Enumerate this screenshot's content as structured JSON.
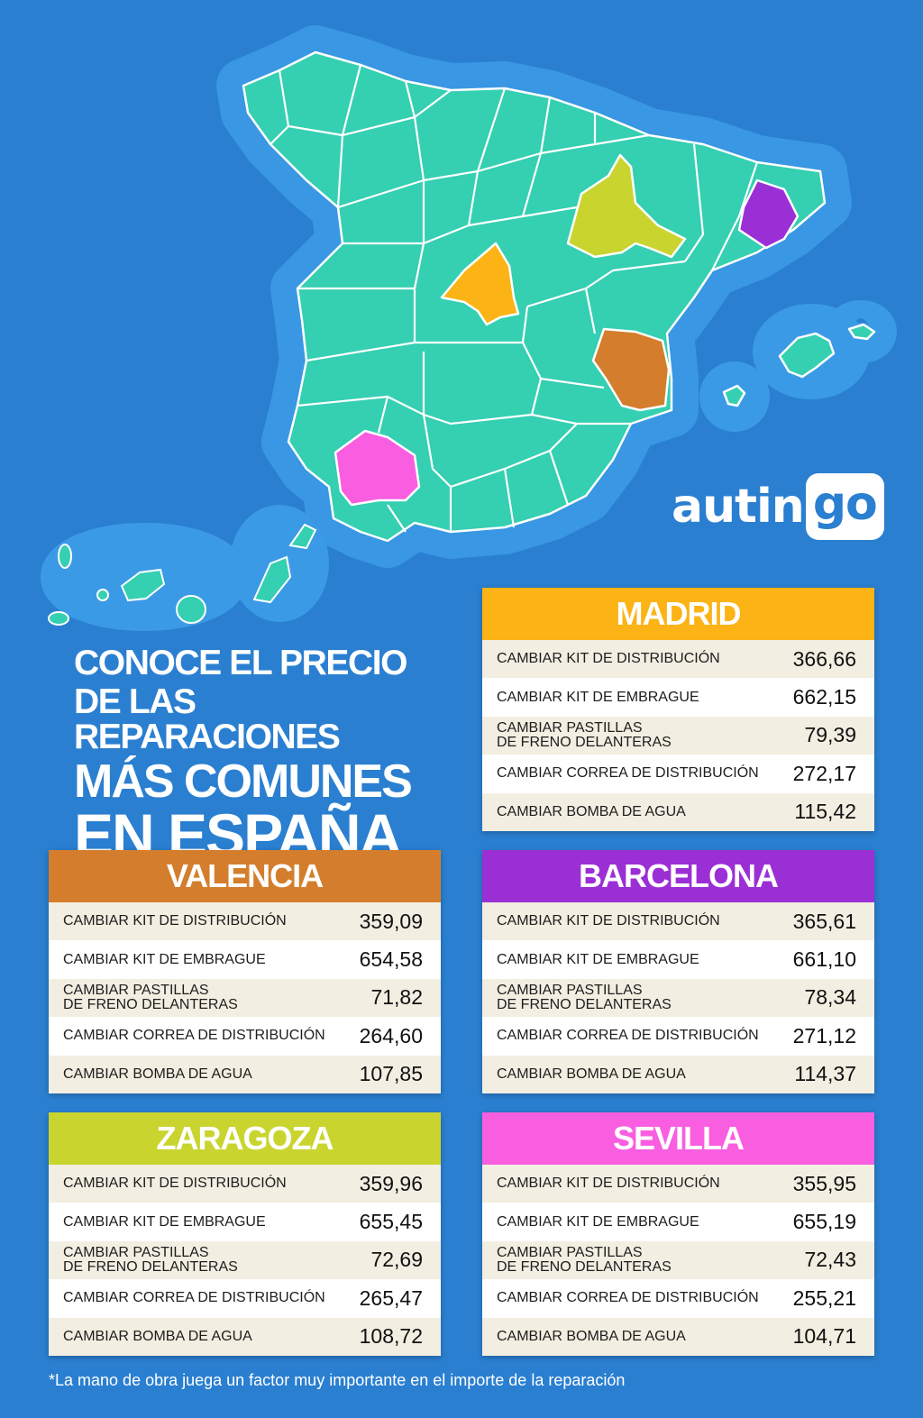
{
  "brand": {
    "logo_part1": "autin",
    "logo_part2": "go"
  },
  "headline": {
    "line1": "CONOCE EL PRECIO",
    "line2": "DE LAS REPARACIONES",
    "line3": "MÁS COMUNES",
    "line4": "EN ESPAÑA"
  },
  "colors": {
    "background": "#2a7fd0",
    "map_land": "#35cfb2",
    "madrid": "#fbb315",
    "valencia": "#d47e2d",
    "barcelona": "#9b2fd6",
    "zaragoza": "#c9d52e",
    "sevilla": "#f95ee0"
  },
  "cities": [
    {
      "name": "MADRID",
      "rows": [
        {
          "label": "CAMBIAR KIT DE DISTRIBUCIÓN",
          "value": "366,66"
        },
        {
          "label": "CAMBIAR KIT DE EMBRAGUE",
          "value": "662,15"
        },
        {
          "label": "CAMBIAR PASTILLAS\nDE FRENO DELANTERAS",
          "value": "79,39"
        },
        {
          "label": "CAMBIAR CORREA DE DISTRIBUCIÓN",
          "value": "272,17"
        },
        {
          "label": "CAMBIAR BOMBA DE AGUA",
          "value": "115,42"
        }
      ]
    },
    {
      "name": "VALENCIA",
      "rows": [
        {
          "label": "CAMBIAR KIT DE DISTRIBUCIÓN",
          "value": "359,09"
        },
        {
          "label": "CAMBIAR KIT DE EMBRAGUE",
          "value": "654,58"
        },
        {
          "label": "CAMBIAR PASTILLAS\nDE FRENO DELANTERAS",
          "value": "71,82"
        },
        {
          "label": "CAMBIAR CORREA DE DISTRIBUCIÓN",
          "value": "264,60"
        },
        {
          "label": "CAMBIAR BOMBA DE AGUA",
          "value": "107,85"
        }
      ]
    },
    {
      "name": "BARCELONA",
      "rows": [
        {
          "label": "CAMBIAR KIT DE DISTRIBUCIÓN",
          "value": "365,61"
        },
        {
          "label": "CAMBIAR KIT DE EMBRAGUE",
          "value": "661,10"
        },
        {
          "label": "CAMBIAR PASTILLAS\nDE FRENO DELANTERAS",
          "value": "78,34"
        },
        {
          "label": "CAMBIAR CORREA DE DISTRIBUCIÓN",
          "value": "271,12"
        },
        {
          "label": "CAMBIAR BOMBA DE AGUA",
          "value": "114,37"
        }
      ]
    },
    {
      "name": "ZARAGOZA",
      "rows": [
        {
          "label": "CAMBIAR KIT DE DISTRIBUCIÓN",
          "value": "359,96"
        },
        {
          "label": "CAMBIAR KIT DE EMBRAGUE",
          "value": "655,45"
        },
        {
          "label": "CAMBIAR PASTILLAS\nDE FRENO DELANTERAS",
          "value": "72,69"
        },
        {
          "label": "CAMBIAR CORREA DE DISTRIBUCIÓN",
          "value": "265,47"
        },
        {
          "label": "CAMBIAR BOMBA DE AGUA",
          "value": "108,72"
        }
      ]
    },
    {
      "name": "SEVILLA",
      "rows": [
        {
          "label": "CAMBIAR KIT DE DISTRIBUCIÓN",
          "value": "355,95"
        },
        {
          "label": "CAMBIAR KIT DE EMBRAGUE",
          "value": "655,19"
        },
        {
          "label": "CAMBIAR PASTILLAS\nDE FRENO DELANTERAS",
          "value": "72,43"
        },
        {
          "label": "CAMBIAR CORREA DE DISTRIBUCIÓN",
          "value": "255,21"
        },
        {
          "label": "CAMBIAR BOMBA DE AGUA",
          "value": "104,71"
        }
      ]
    }
  ],
  "footnote": "*La mano de obra juega un factor muy importante en el importe de la reparación"
}
